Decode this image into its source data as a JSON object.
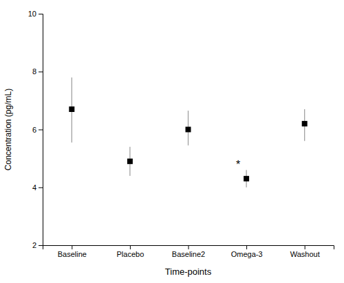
{
  "chart_data": {
    "type": "errorbar",
    "categories": [
      "Baseline",
      "Placebo",
      "Baseline2",
      "Omega-3",
      "Washout"
    ],
    "values": [
      6.7,
      4.9,
      6.0,
      4.3,
      6.2
    ],
    "errors_upper": [
      1.1,
      0.5,
      0.65,
      0.3,
      0.5
    ],
    "errors_lower": [
      1.15,
      0.5,
      0.55,
      0.3,
      0.6
    ],
    "annotations": [
      {
        "text": "*",
        "category": "Omega-3"
      }
    ],
    "xlabel": "Time-points",
    "ylabel": "Concentration (pg/mL)",
    "ylim": [
      2,
      10
    ],
    "yticks": [
      2,
      4,
      6,
      8,
      10
    ],
    "marker": "square",
    "color": "#000000",
    "grid": false
  }
}
